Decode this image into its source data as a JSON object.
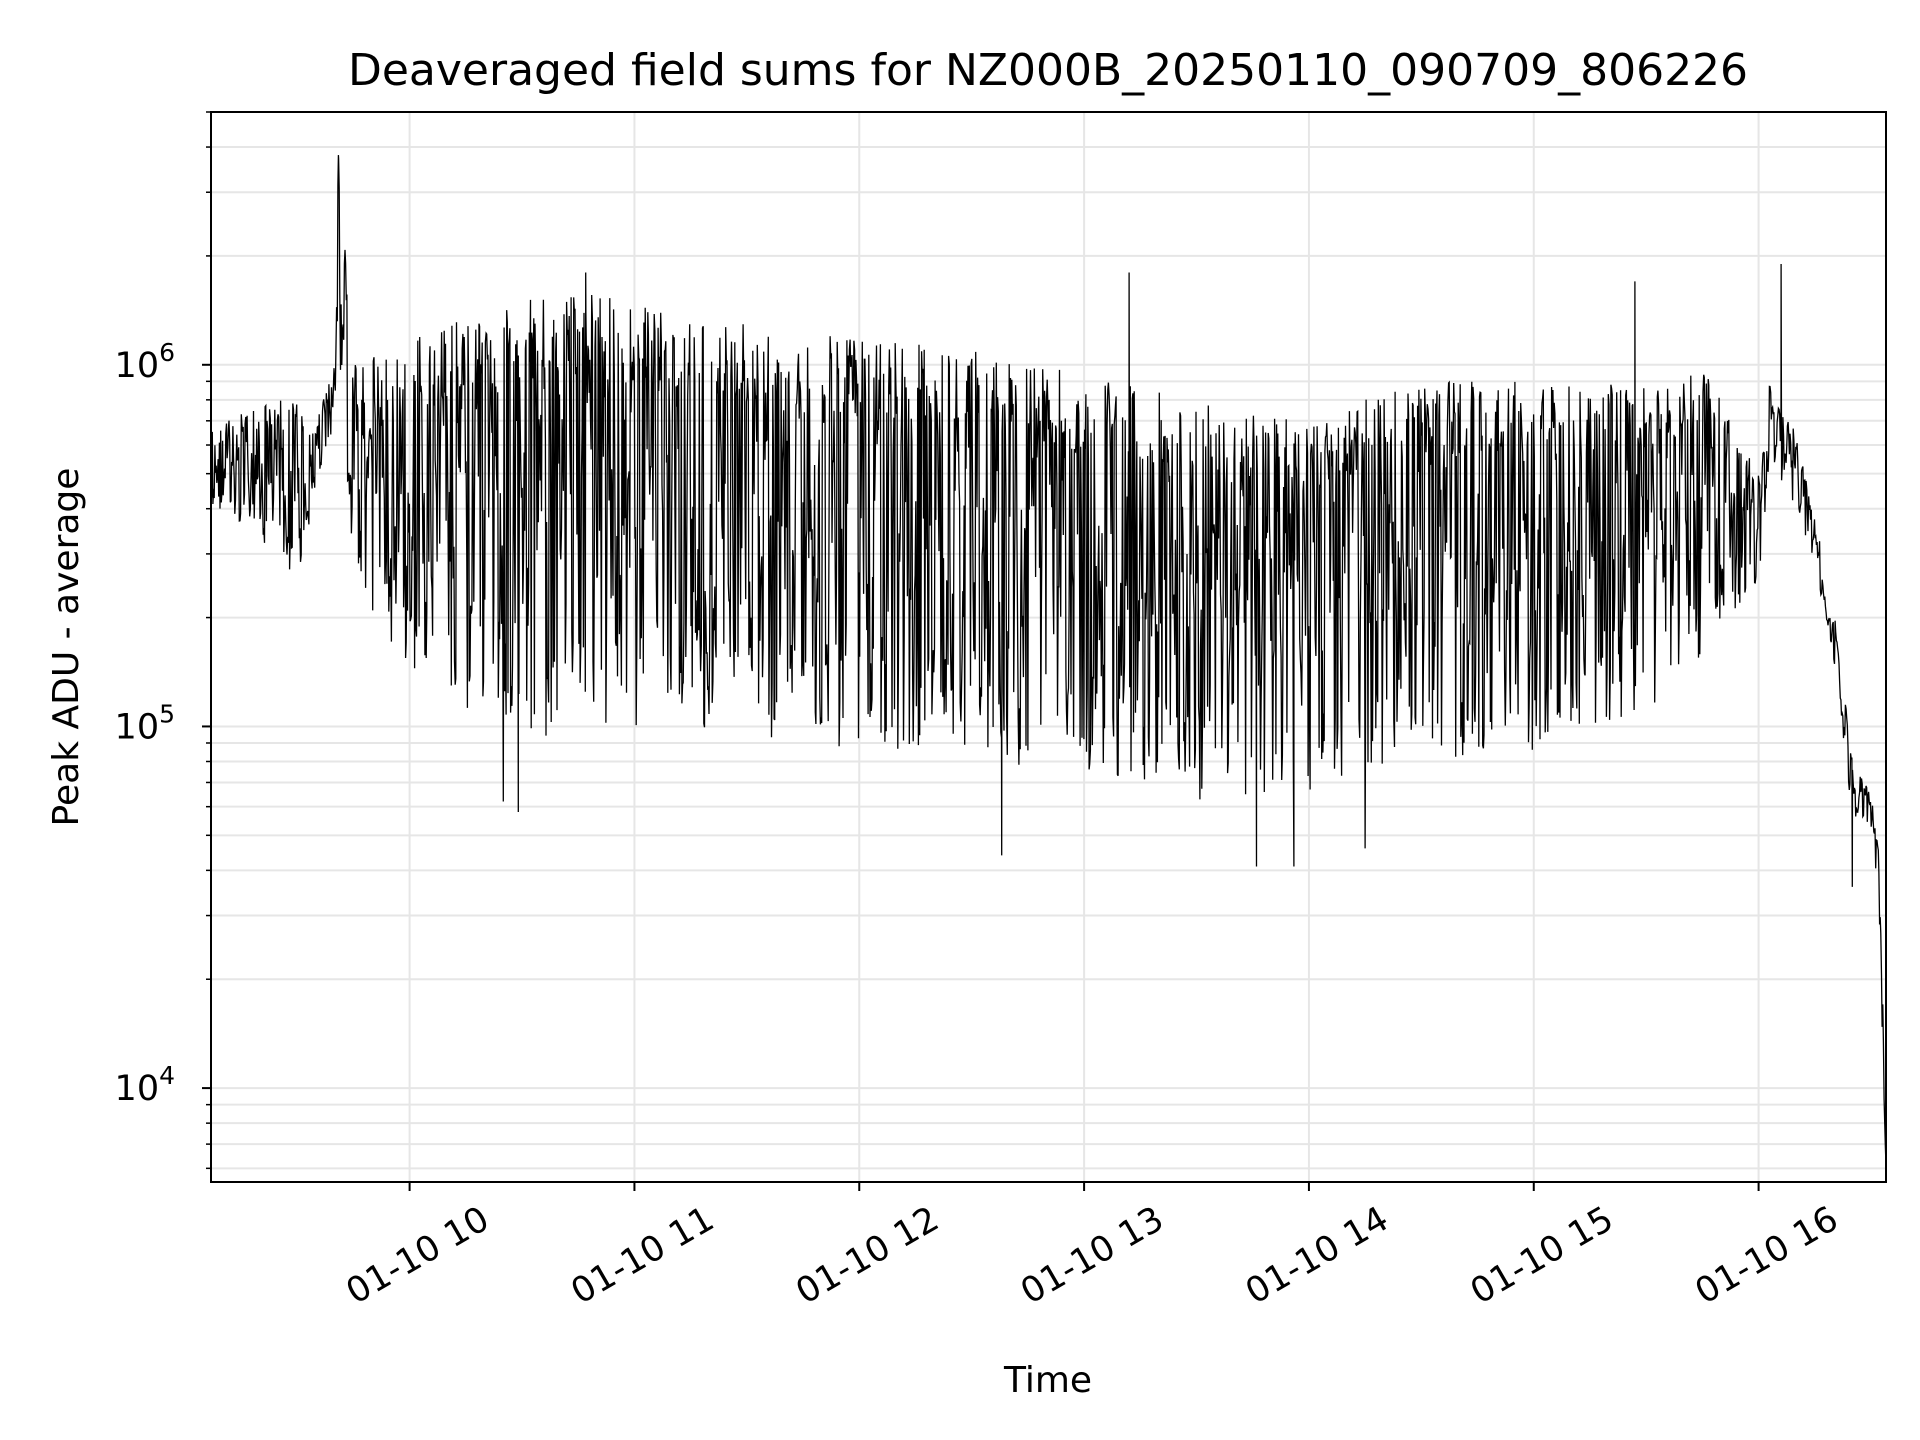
{
  "chart_data": {
    "type": "line",
    "title": "Deaveraged field sums for NZ000B_20250110_090709_806226",
    "xlabel": "Time",
    "ylabel": "Peak ADU - average",
    "yscale": "log",
    "grid": true,
    "x_tick_labels": [
      "01-10 10",
      "01-10 11",
      "01-10 12",
      "01-10 13",
      "01-10 14",
      "01-10 15",
      "01-10 16"
    ],
    "y_tick_labels": [
      {
        "base": "10",
        "exp": "4"
      },
      {
        "base": "10",
        "exp": "5"
      },
      {
        "base": "10",
        "exp": "6"
      }
    ],
    "y_ticks": [
      10000,
      100000,
      1000000
    ],
    "xlim": [
      "2025-01-10 09:07",
      "2025-01-10 16:34"
    ],
    "ylim": [
      5500,
      5000000
    ],
    "line_color": "#000000",
    "grid_color": "#e6e6e6",
    "series": [
      {
        "envelope": [
          {
            "time": "2025-01-10 09:07",
            "low": 400000,
            "high": 650000
          },
          {
            "time": "2025-01-10 09:20",
            "low": 330000,
            "high": 800000
          },
          {
            "time": "2025-01-10 09:30",
            "low": 250000,
            "high": 800000
          },
          {
            "time": "2025-01-10 09:35",
            "low": 450000,
            "high": 700000
          },
          {
            "time": "2025-01-10 09:40",
            "low": 650000,
            "high": 1000000
          },
          {
            "time": "2025-01-10 09:41",
            "low": 600000,
            "high": 3800000
          },
          {
            "time": "2025-01-10 09:45",
            "low": 250000,
            "high": 1000000
          },
          {
            "time": "2025-01-10 09:55",
            "low": 160000,
            "high": 1100000
          },
          {
            "time": "2025-01-10 10:10",
            "low": 110000,
            "high": 1300000
          },
          {
            "time": "2025-01-10 10:30",
            "low": 90000,
            "high": 1500000
          },
          {
            "time": "2025-01-10 10:45",
            "low": 100000,
            "high": 1600000
          },
          {
            "time": "2025-01-10 11:00",
            "low": 100000,
            "high": 1500000
          },
          {
            "time": "2025-01-10 11:30",
            "low": 95000,
            "high": 1300000
          },
          {
            "time": "2025-01-10 12:00",
            "low": 85000,
            "high": 1200000
          },
          {
            "time": "2025-01-10 12:30",
            "low": 80000,
            "high": 1100000
          },
          {
            "time": "2025-01-10 13:00",
            "low": 75000,
            "high": 950000
          },
          {
            "time": "2025-01-10 13:30",
            "low": 62000,
            "high": 800000
          },
          {
            "time": "2025-01-10 14:00",
            "low": 65000,
            "high": 700000
          },
          {
            "time": "2025-01-10 14:15",
            "low": 72000,
            "high": 800000
          },
          {
            "time": "2025-01-10 14:30",
            "low": 80000,
            "high": 900000
          },
          {
            "time": "2025-01-10 15:00",
            "low": 85000,
            "high": 900000
          },
          {
            "time": "2025-01-10 15:30",
            "low": 100000,
            "high": 900000
          },
          {
            "time": "2025-01-10 15:45",
            "low": 160000,
            "high": 1000000
          },
          {
            "time": "2025-01-10 16:00",
            "low": 250000,
            "high": 500000
          },
          {
            "time": "2025-01-10 16:03",
            "low": 550000,
            "high": 900000
          },
          {
            "time": "2025-01-10 16:10",
            "low": 400000,
            "high": 650000
          },
          {
            "time": "2025-01-10 16:15",
            "low": 280000,
            "high": 380000
          },
          {
            "time": "2025-01-10 16:20",
            "low": 150000,
            "high": 220000
          },
          {
            "time": "2025-01-10 16:25",
            "low": 55000,
            "high": 80000
          },
          {
            "time": "2025-01-10 16:30",
            "low": 50000,
            "high": 65000
          },
          {
            "time": "2025-01-10 16:32",
            "low": 35000,
            "high": 45000
          },
          {
            "time": "2025-01-10 16:34",
            "low": 5500,
            "high": 9000
          }
        ],
        "spikes": [
          {
            "time": "2025-01-10 09:41",
            "value": 3800000
          },
          {
            "time": "2025-01-10 10:47",
            "value": 1800000
          },
          {
            "time": "2025-01-10 13:12",
            "value": 1800000
          },
          {
            "time": "2025-01-10 15:27",
            "value": 1700000
          },
          {
            "time": "2025-01-10 16:06",
            "value": 1900000
          }
        ],
        "dips": [
          {
            "time": "2025-01-10 10:25",
            "value": 62000
          },
          {
            "time": "2025-01-10 10:29",
            "value": 58000
          },
          {
            "time": "2025-01-10 12:38",
            "value": 44000
          },
          {
            "time": "2025-01-10 13:46",
            "value": 41000
          },
          {
            "time": "2025-01-10 13:56",
            "value": 41000
          },
          {
            "time": "2025-01-10 14:15",
            "value": 46000
          },
          {
            "time": "2025-01-10 16:25",
            "value": 36000
          }
        ]
      }
    ]
  }
}
